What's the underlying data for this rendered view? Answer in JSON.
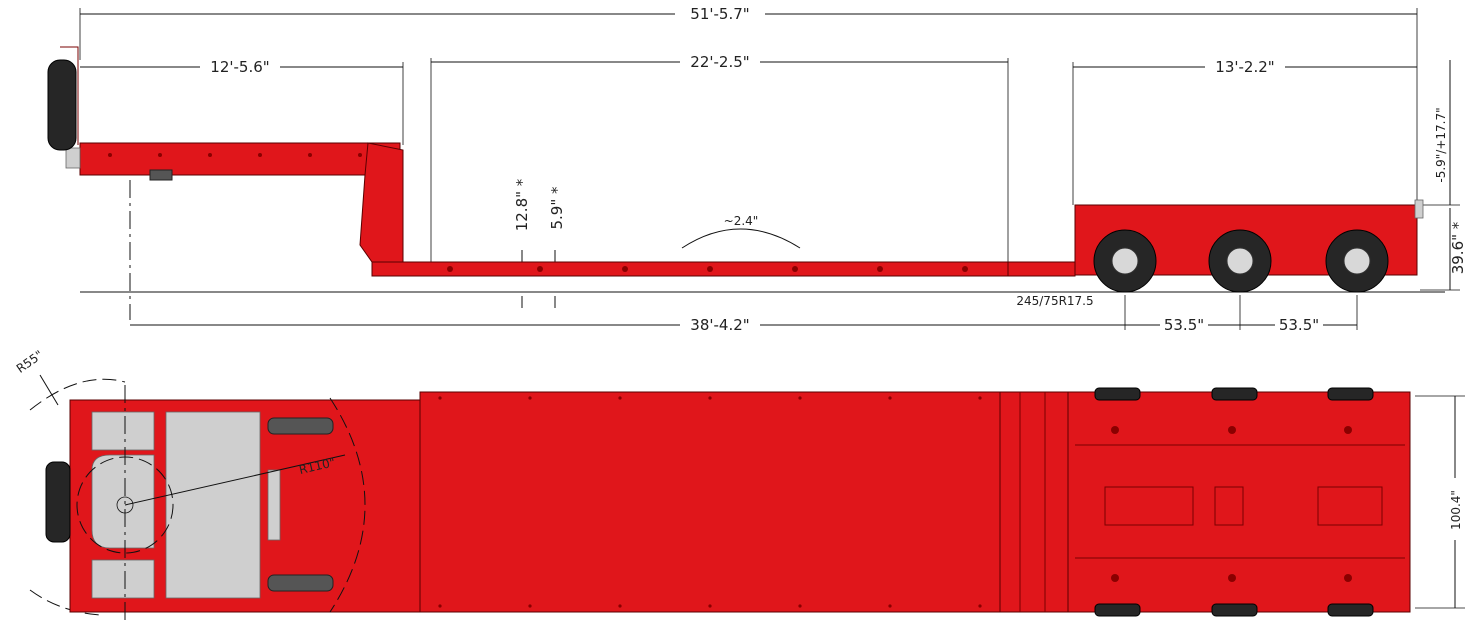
{
  "dimensions": {
    "overall_length": "51'-5.7\"",
    "gooseneck_length": "12'-5.6\"",
    "well_length": "22'-2.5\"",
    "rear_deck_length": "13'-2.2\"",
    "deck_height_variation": "-5.9\"/+17.7\"",
    "rear_deck_height": "39.6\" *",
    "well_height_1": "12.8\" *",
    "well_height_2": "5.9\" *",
    "deck_crown": "~2.4\"",
    "tire_size": "245/75R17.5",
    "kingpin_to_axle": "38'-4.2\"",
    "axle_spacing_1": "53.5\"",
    "axle_spacing_2": "53.5\"",
    "swing_radius_front": "R55\"",
    "swing_radius_kingpin": "R110\"",
    "overall_width": "100.4\""
  },
  "colors": {
    "trailer_body": "#e0161b",
    "tire": "#262626",
    "plate": "#cfcfcf"
  }
}
